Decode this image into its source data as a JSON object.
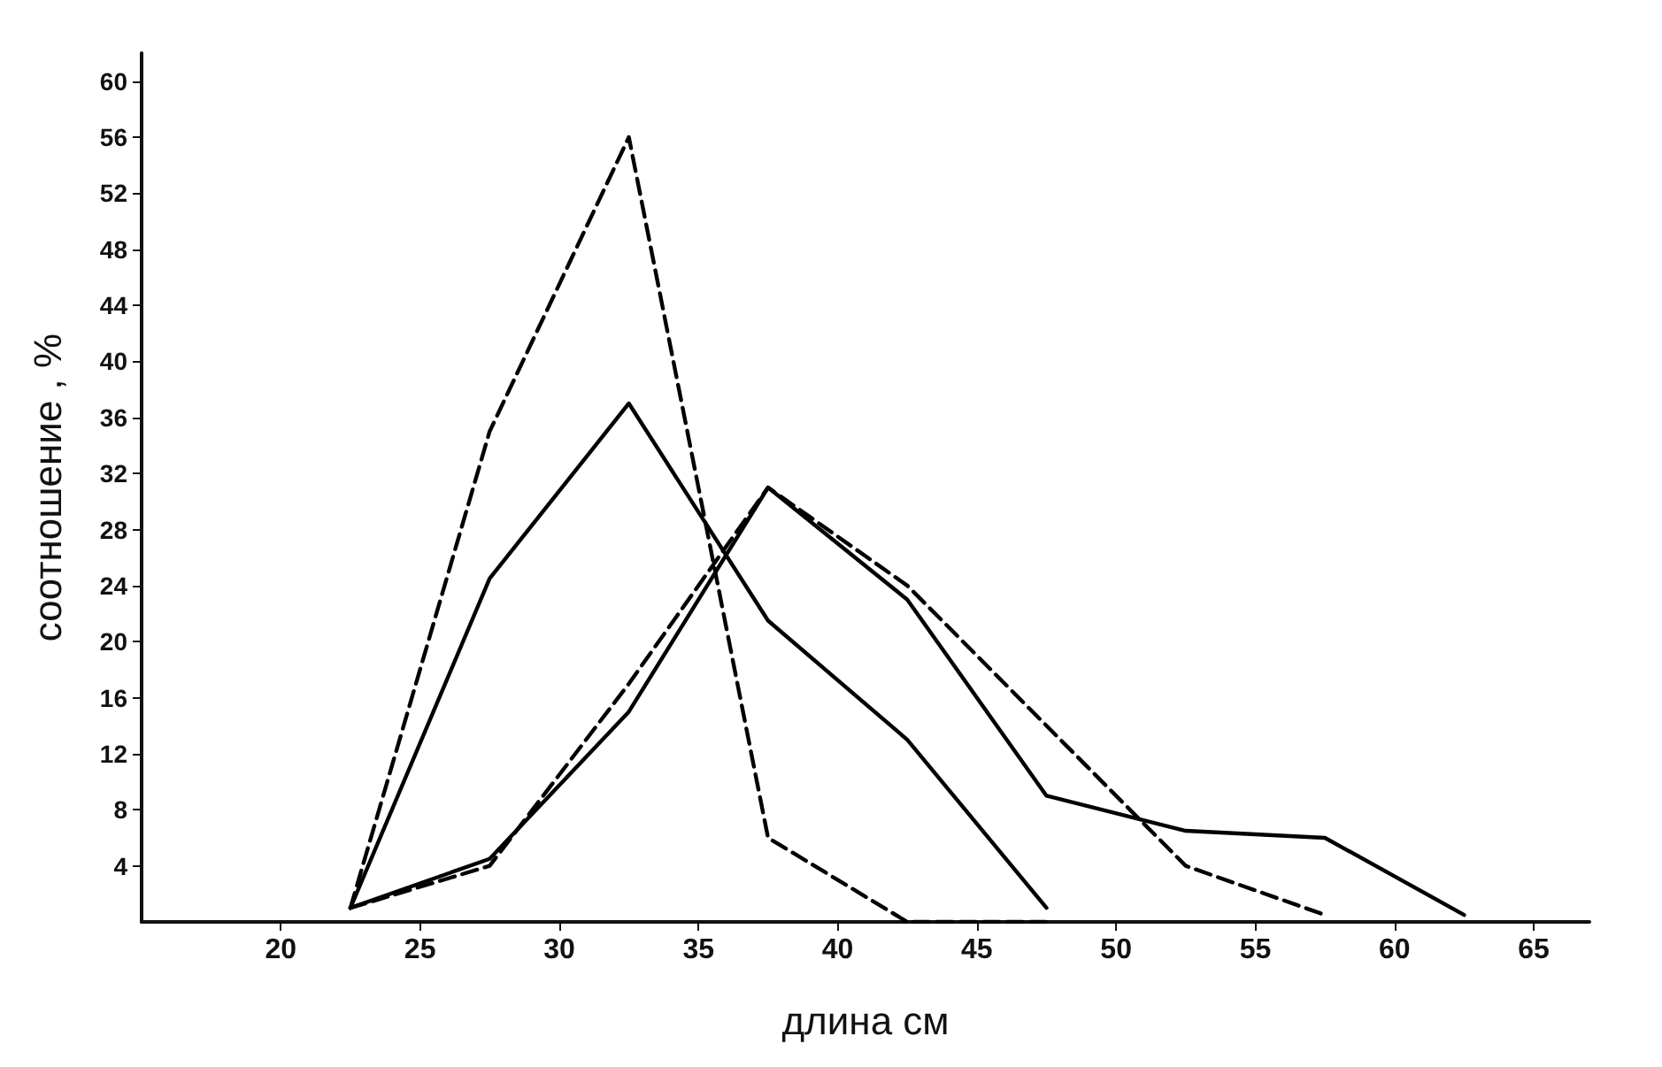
{
  "chart_data": {
    "type": "line",
    "xlabel": "длина см",
    "ylabel": "соотношение , %",
    "xlim": [
      15,
      67
    ],
    "xticks": [
      20,
      25,
      30,
      35,
      40,
      45,
      50,
      55,
      60,
      65
    ],
    "ylim": [
      0,
      62
    ],
    "yticks": [
      4,
      8,
      12,
      16,
      20,
      24,
      28,
      32,
      36,
      40,
      44,
      48,
      52,
      56,
      60
    ],
    "grid": false,
    "marker": "none",
    "series": [
      {
        "color": "#000000",
        "line_style": "solid",
        "x": [
          22.5,
          27.5,
          32.5,
          37.5,
          42.5,
          47.5
        ],
        "values": [
          1,
          24.5,
          37,
          21.5,
          13,
          1
        ]
      },
      {
        "color": "#000000",
        "line_style": "dashed",
        "x": [
          22.5,
          27.5,
          32.5,
          37.5,
          42.5,
          47.5
        ],
        "values": [
          1,
          35,
          56,
          6,
          0,
          0
        ]
      },
      {
        "color": "#000000",
        "line_style": "solid",
        "x": [
          22.5,
          27.5,
          32.5,
          37.5,
          42.5,
          47.5,
          52.5,
          57.5,
          62.5
        ],
        "values": [
          1,
          4.5,
          15,
          31,
          23,
          9,
          6.5,
          6,
          0.5
        ]
      },
      {
        "color": "#000000",
        "line_style": "dashed",
        "x": [
          22.5,
          27.5,
          32.5,
          37.5,
          42.5,
          47.5,
          52.5,
          57.5
        ],
        "values": [
          1,
          4,
          17,
          31,
          24,
          14,
          4,
          0.5
        ]
      }
    ]
  }
}
